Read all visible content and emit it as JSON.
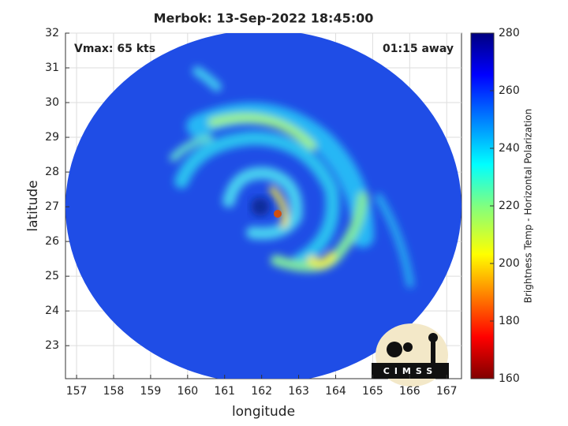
{
  "chart_data": {
    "type": "map",
    "title": "Merbok: 13-Sep-2022 18:45:00",
    "x_label": "longitude",
    "y_label": "latitude",
    "annotations": [
      "Vmax: 65 kts",
      "01:15 away"
    ],
    "logo_text": "CIMSS",
    "xlim": [
      156.7,
      167.4
    ],
    "xticks": [
      157,
      158,
      159,
      160,
      161,
      162,
      163,
      164,
      165,
      166,
      167
    ],
    "ylim": [
      22.05,
      32
    ],
    "yticks": [
      23,
      24,
      25,
      26,
      27,
      28,
      29,
      30,
      31,
      32
    ],
    "grid": true,
    "colorbar": {
      "label": "Brightness Temp - Horizontal Polarization",
      "clim": [
        160,
        280
      ],
      "ticks": [
        160,
        180,
        200,
        220,
        240,
        260,
        280
      ],
      "colormap": "jet"
    }
  }
}
